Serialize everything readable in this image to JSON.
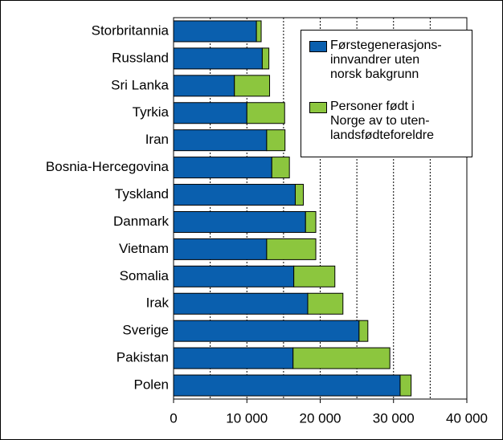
{
  "chart_data": {
    "type": "stacked-barh",
    "categories": [
      "Storbritannia",
      "Russland",
      "Sri Lanka",
      "Tyrkia",
      "Iran",
      "Bosnia-Hercegovina",
      "Tyskland",
      "Danmark",
      "Vietnam",
      "Somalia",
      "Irak",
      "Sverige",
      "Pakistan",
      "Polen"
    ],
    "series": [
      {
        "name": "Førstegenerasjons-\ninnvandrer uten\nnorsk bakgrunn",
        "color": "#0a5fae",
        "values": [
          11300,
          12100,
          8300,
          10000,
          12700,
          13400,
          16600,
          18000,
          12700,
          16400,
          18300,
          25300,
          16300,
          30900
        ]
      },
      {
        "name": "Personer født i\nNorge av to uten-\nlandsfødteforeldre",
        "color": "#8cc63e",
        "values": [
          650,
          900,
          4800,
          5150,
          2500,
          2400,
          1100,
          1400,
          6700,
          5600,
          4800,
          1200,
          13200,
          1500
        ]
      }
    ],
    "xlim": [
      0,
      40000
    ],
    "xticks": [
      {
        "value": 0,
        "label": "0"
      },
      {
        "value": 10000,
        "label": "10 000"
      },
      {
        "value": 20000,
        "label": "20 000"
      },
      {
        "value": 30000,
        "label": "30 000"
      },
      {
        "value": 40000,
        "label": "40 000"
      }
    ],
    "grid_ticks": [
      5000,
      10000,
      15000,
      20000,
      25000,
      30000,
      35000
    ],
    "grid": true
  }
}
